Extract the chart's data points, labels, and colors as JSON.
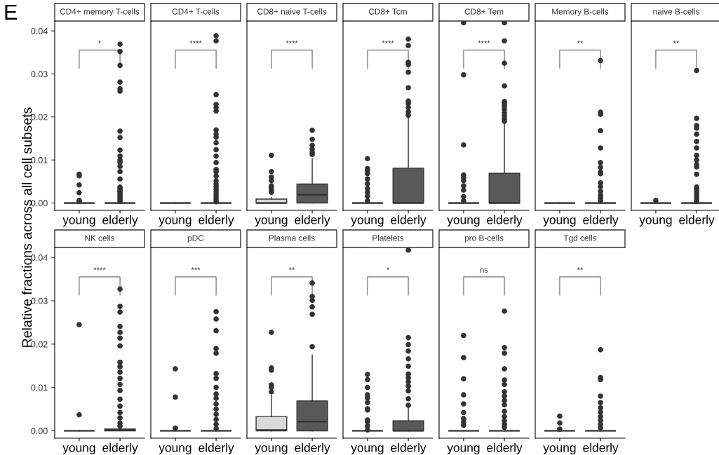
{
  "chart_data": [
    {
      "type": "box",
      "title": "CD4+ memory T-cells",
      "ylabel": "Relative fractions across all cell subsets",
      "annotations": [
        "E",
        "*"
      ],
      "categories": [
        "young",
        "elderly"
      ],
      "colors": [
        "#333333",
        "#333333"
      ],
      "ylim": [
        -0.0017,
        0.0423
      ],
      "yticks": [
        {
          "value": 0,
          "label": "0.00"
        },
        0.01,
        0.02,
        0.03,
        0.04
      ],
      "marker": "circle",
      "boxes": [
        {
          "low": 0,
          "q1": 0,
          "median": 0,
          "q3": 0,
          "high": 0,
          "outliers": [
            0.0067,
            0.0063,
            0.0042,
            0.0024,
            0.0006,
            0.0004
          ]
        },
        {
          "low": 0,
          "q1": 0,
          "median": 0,
          "q3": 0,
          "high": 0,
          "outliers": [
            0.0369,
            0.0352,
            0.032,
            0.0281,
            0.0266,
            0.026,
            0.0167,
            0.0152,
            0.0123,
            0.0109,
            0.01,
            0.0095,
            0.0085,
            0.0073,
            0.0056,
            0.0037,
            0.0033,
            0.003,
            0.0027,
            0.0024,
            0.002,
            0.0016,
            0.0012,
            0.0008,
            0.0004
          ]
        }
      ]
    },
    {
      "type": "box",
      "title": "CD4+ T-cells",
      "annotations": [
        "****"
      ],
      "categories": [
        "young",
        "elderly"
      ],
      "colors": [
        "#333333",
        "#333333"
      ],
      "ylim": [
        -0.0017,
        0.0423
      ],
      "tick_labels": "x",
      "marker": "circle",
      "boxes": [
        {
          "low": 0,
          "q1": 0,
          "median": 0,
          "q3": 0,
          "high": 0
        },
        {
          "low": 0,
          "q1": 0,
          "median": 0,
          "q3": 0,
          "high": 0,
          "outliers": [
            0.0389,
            0.0377,
            0.0252,
            0.0229,
            0.0222,
            0.0214,
            0.017,
            0.016,
            0.0153,
            0.014,
            0.0124,
            0.0109,
            0.0094,
            0.0078,
            0.0073,
            0.0063,
            0.0052,
            0.0044,
            0.0038,
            0.0032,
            0.0026,
            0.002,
            0.0014,
            0.0008,
            0.0003
          ]
        }
      ]
    },
    {
      "type": "box",
      "title": "CD8+ naive T-cells",
      "annotations": [
        "****"
      ],
      "categories": [
        "young",
        "elderly"
      ],
      "colors": [
        "#d9d9d9",
        "#595959"
      ],
      "ylim": [
        -0.0017,
        0.0423
      ],
      "tick_labels": "x",
      "marker": "circle",
      "boxes": [
        {
          "low": 0,
          "q1": 0,
          "median": 0,
          "q3": 0.0009,
          "high": 0.0013,
          "outliers": [
            0.0111,
            0.0073,
            0.006,
            0.0052,
            0.004,
            0.0035,
            0.003,
            0.0025
          ]
        },
        {
          "low": 0,
          "q1": 0,
          "median": 0.0019,
          "q3": 0.0044,
          "high": 0.0103,
          "outliers": [
            0.0169,
            0.0148,
            0.0134,
            0.0125,
            0.0118,
            0.0113
          ]
        }
      ]
    },
    {
      "type": "box",
      "title": "CD8+ Tcm",
      "annotations": [
        "****"
      ],
      "categories": [
        "young",
        "elderly"
      ],
      "colors": [
        "#333333",
        "#595959"
      ],
      "ylim": [
        -0.0017,
        0.0423
      ],
      "tick_labels": "x",
      "marker": "circle",
      "boxes": [
        {
          "low": 0,
          "q1": 0,
          "median": 0,
          "q3": 0,
          "high": 0,
          "outliers": [
            0.0103,
            0.008,
            0.0075,
            0.0068,
            0.0056,
            0.0045,
            0.0034,
            0.0025,
            0.0016,
            0.0005
          ]
        },
        {
          "low": 0,
          "q1": 0,
          "median": 0,
          "q3": 0.0081,
          "high": 0.0197,
          "outliers": [
            0.0381,
            0.0366,
            0.0327,
            0.0322,
            0.0304,
            0.0268,
            0.0237,
            0.0231,
            0.0222,
            0.0212,
            0.0204
          ]
        }
      ]
    },
    {
      "type": "box",
      "title": "CD8+ Tem",
      "annotations": [
        "****"
      ],
      "categories": [
        "young",
        "elderly"
      ],
      "colors": [
        "#333333",
        "#595959"
      ],
      "ylim": [
        -0.0017,
        0.0423
      ],
      "tick_labels": "x",
      "marker": "circle",
      "boxes": [
        {
          "low": 0,
          "q1": 0,
          "median": 0,
          "q3": 0,
          "high": 0,
          "outliers": [
            0.0419,
            0.0298,
            0.0135,
            0.0065,
            0.0058,
            0.0052,
            0.004,
            0.003,
            0.0015,
            0.0005
          ]
        },
        {
          "low": 0,
          "q1": 0,
          "median": 0,
          "q3": 0.0069,
          "high": 0.0185,
          "outliers": [
            0.0419,
            0.0377,
            0.0325,
            0.0272,
            0.0236,
            0.0231,
            0.0225,
            0.0218,
            0.021,
            0.0203,
            0.0196,
            0.019
          ]
        }
      ]
    },
    {
      "type": "box",
      "title": "Memory B-cells",
      "annotations": [
        "**"
      ],
      "categories": [
        "young",
        "elderly"
      ],
      "colors": [
        "#333333",
        "#333333"
      ],
      "ylim": [
        -0.0017,
        0.0423
      ],
      "tick_labels": "x",
      "marker": "circle",
      "boxes": [
        {
          "low": 0,
          "q1": 0,
          "median": 0,
          "q3": 0,
          "high": 0
        },
        {
          "low": 0,
          "q1": 0,
          "median": 0,
          "q3": 0,
          "high": 0,
          "outliers": [
            0.0331,
            0.0211,
            0.0206,
            0.0168,
            0.0128,
            0.0094,
            0.0083,
            0.0072,
            0.0068,
            0.0047,
            0.0038,
            0.0027,
            0.0019,
            0.0012,
            0.0006
          ]
        }
      ]
    },
    {
      "type": "box",
      "title": "naive B-cells",
      "annotations": [
        "**"
      ],
      "categories": [
        "young",
        "elderly"
      ],
      "colors": [
        "#333333",
        "#333333"
      ],
      "ylim": [
        -0.0017,
        0.0423
      ],
      "tick_labels": "x",
      "marker": "circle",
      "boxes": [
        {
          "low": 0,
          "q1": 0,
          "median": 0,
          "q3": 0,
          "high": 0,
          "outliers": [
            0.0006
          ]
        },
        {
          "low": 0,
          "q1": 0,
          "median": 0,
          "q3": 0,
          "high": 0,
          "outliers": [
            0.0308,
            0.0197,
            0.018,
            0.0174,
            0.016,
            0.0143,
            0.0128,
            0.0111,
            0.01,
            0.009,
            0.0084,
            0.0067,
            0.0037,
            0.0033,
            0.0028,
            0.0022,
            0.0016,
            0.001,
            0.0004
          ]
        }
      ]
    },
    {
      "type": "box",
      "title": "NK cells",
      "annotations": [
        "****"
      ],
      "categories": [
        "young",
        "elderly"
      ],
      "colors": [
        "#333333",
        "#595959"
      ],
      "ylim": [
        -0.0017,
        0.0423
      ],
      "yticks": [
        {
          "value": 0,
          "label": "0.00"
        },
        0.01,
        0.02,
        0.03,
        0.04
      ],
      "marker": "circle",
      "boxes": [
        {
          "low": 0,
          "q1": 0,
          "median": 0,
          "q3": 0,
          "high": 0,
          "outliers": [
            0.0245,
            0.0037
          ]
        },
        {
          "low": 0,
          "q1": 0,
          "median": 0.0001,
          "q3": 0.0004,
          "high": 0.0009,
          "outliers": [
            0.0327,
            0.0287,
            0.0274,
            0.0241,
            0.0227,
            0.0214,
            0.0196,
            0.0158,
            0.0148,
            0.0135,
            0.0121,
            0.0107,
            0.0093,
            0.0073,
            0.0057,
            0.0042,
            0.003,
            0.0018,
            0.0011
          ]
        }
      ]
    },
    {
      "type": "box",
      "title": "pDC",
      "annotations": [
        "***"
      ],
      "categories": [
        "young",
        "elderly"
      ],
      "colors": [
        "#333333",
        "#333333"
      ],
      "ylim": [
        -0.0017,
        0.0423
      ],
      "tick_labels": "x",
      "marker": "circle",
      "boxes": [
        {
          "low": 0,
          "q1": 0,
          "median": 0,
          "q3": 0,
          "high": 0,
          "outliers": [
            0.0143,
            0.0078,
            0.0006
          ]
        },
        {
          "low": 0,
          "q1": 0,
          "median": 0,
          "q3": 0,
          "high": 0,
          "outliers": [
            0.0275,
            0.0258,
            0.0231,
            0.019,
            0.0179,
            0.0132,
            0.0121,
            0.01,
            0.0085,
            0.0075,
            0.0062,
            0.005,
            0.0038,
            0.0026,
            0.0015,
            0.0005
          ]
        }
      ]
    },
    {
      "type": "box",
      "title": "Plasma cells",
      "annotations": [
        "**"
      ],
      "categories": [
        "young",
        "elderly"
      ],
      "colors": [
        "#d9d9d9",
        "#595959"
      ],
      "ylim": [
        -0.0017,
        0.0423
      ],
      "tick_labels": "x",
      "marker": "circle",
      "boxes": [
        {
          "low": 0,
          "q1": 0,
          "median": 0.0002,
          "q3": 0.0033,
          "high": 0.0082,
          "outliers": [
            0.0227,
            0.0145,
            0.014,
            0.0106,
            0.01,
            0.009
          ]
        },
        {
          "low": 0,
          "q1": 0,
          "median": 0.0021,
          "q3": 0.0069,
          "high": 0.0175,
          "outliers": [
            0.0341,
            0.031,
            0.0301,
            0.0286,
            0.0269,
            0.0194
          ]
        }
      ]
    },
    {
      "type": "box",
      "title": "Platelets",
      "annotations": [
        "*"
      ],
      "categories": [
        "young",
        "elderly"
      ],
      "colors": [
        "#333333",
        "#595959"
      ],
      "ylim": [
        -0.0017,
        0.0423
      ],
      "tick_labels": "x",
      "marker": "circle",
      "boxes": [
        {
          "low": 0,
          "q1": 0,
          "median": 0,
          "q3": 0,
          "high": 0,
          "outliers": [
            0.013,
            0.0118,
            0.01,
            0.0083,
            0.0076,
            0.0065,
            0.0051,
            0.0048,
            0.0025,
            0.0021,
            0.0011,
            0.0002
          ]
        },
        {
          "low": 0,
          "q1": 0,
          "median": 0,
          "q3": 0.0023,
          "high": 0.0055,
          "outliers": [
            0.0417,
            0.0215,
            0.0199,
            0.0184,
            0.0166,
            0.0149,
            0.0131,
            0.0122,
            0.0113,
            0.0103,
            0.0092,
            0.0074,
            0.0059
          ]
        }
      ]
    },
    {
      "type": "box",
      "title": "pro B-cells",
      "annotations": [
        "ns"
      ],
      "categories": [
        "young",
        "elderly"
      ],
      "colors": [
        "#333333",
        "#333333"
      ],
      "ylim": [
        -0.0017,
        0.0423
      ],
      "tick_labels": "x",
      "marker": "circle",
      "boxes": [
        {
          "low": 0,
          "q1": 0,
          "median": 0,
          "q3": 0,
          "high": 0,
          "outliers": [
            0.022,
            0.0169,
            0.012,
            0.0083,
            0.0062,
            0.0042,
            0.0028,
            0.002,
            0.0013
          ]
        },
        {
          "low": 0,
          "q1": 0,
          "median": 0,
          "q3": 0,
          "high": 0,
          "outliers": [
            0.0276,
            0.0192,
            0.0179,
            0.0143,
            0.0117,
            0.0107,
            0.009,
            0.008,
            0.007,
            0.006,
            0.0045,
            0.0033,
            0.0023,
            0.0015,
            0.0008
          ]
        }
      ]
    },
    {
      "type": "box",
      "title": "Tgd cells",
      "annotations": [
        "**"
      ],
      "categories": [
        "young",
        "elderly"
      ],
      "colors": [
        "#333333",
        "#333333"
      ],
      "ylim": [
        -0.0017,
        0.0423
      ],
      "tick_labels": "x",
      "marker": "circle",
      "boxes": [
        {
          "low": 0,
          "q1": 0,
          "median": 0,
          "q3": 0,
          "high": 0,
          "outliers": [
            0.0034,
            0.0018,
            0.0004
          ]
        },
        {
          "low": 0,
          "q1": 0,
          "median": 0,
          "q3": 0,
          "high": 0,
          "outliers": [
            0.0187,
            0.0123,
            0.0118,
            0.008,
            0.0065,
            0.0053,
            0.0043,
            0.0033,
            0.0024,
            0.0015,
            0.0007
          ]
        }
      ]
    }
  ]
}
